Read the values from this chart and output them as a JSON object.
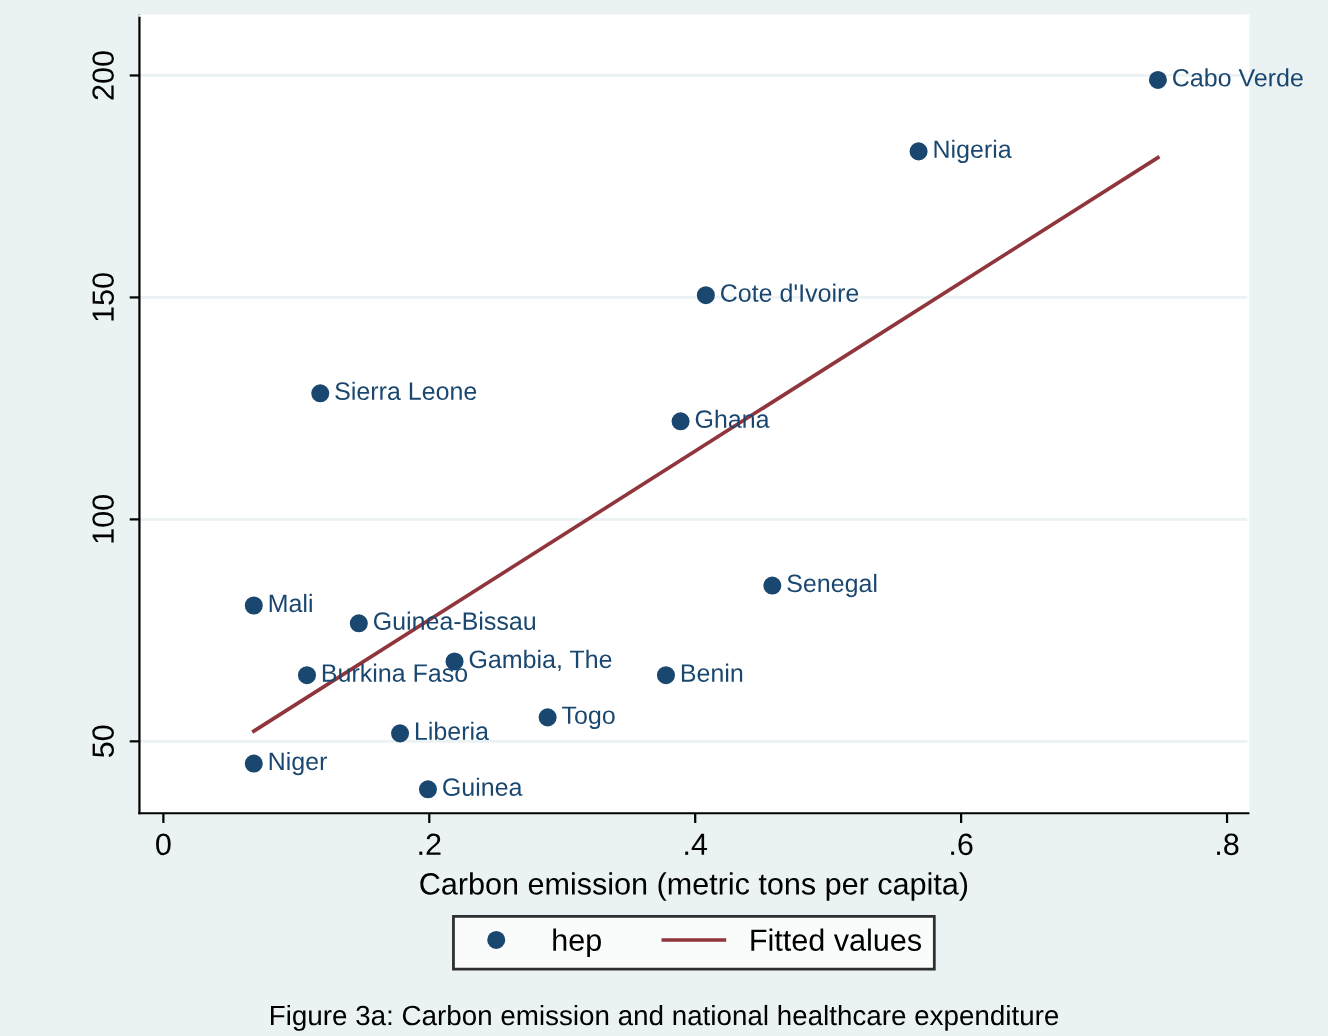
{
  "chart_data": {
    "type": "scatter",
    "xlabel": "Carbon emission (metric tons per capita)",
    "annotations": [
      {
        "text": "Cabo Verde",
        "x": 0.748,
        "y": 199
      },
      {
        "text": "Nigeria",
        "x": 0.568,
        "y": 182.9
      },
      {
        "text": "Cote d'Ivoire",
        "x": 0.408,
        "y": 150.5
      },
      {
        "text": "Sierra Leone",
        "x": 0.118,
        "y": 128.4
      },
      {
        "text": "Ghana",
        "x": 0.389,
        "y": 122.1
      },
      {
        "text": "Senegal",
        "x": 0.458,
        "y": 85.1
      },
      {
        "text": "Mali",
        "x": 0.068,
        "y": 80.6
      },
      {
        "text": "Guinea-Bissau",
        "x": 0.147,
        "y": 76.6
      },
      {
        "text": "Gambia, The",
        "x": 0.219,
        "y": 68
      },
      {
        "text": "Benin",
        "x": 0.378,
        "y": 64.9
      },
      {
        "text": "Burkina Faso",
        "x": 0.108,
        "y": 64.9
      },
      {
        "text": "Togo",
        "x": 0.289,
        "y": 55.4
      },
      {
        "text": "Liberia",
        "x": 0.178,
        "y": 51.8
      },
      {
        "text": "Niger",
        "x": 0.068,
        "y": 45
      },
      {
        "text": "Guinea",
        "x": 0.199,
        "y": 39.2
      },
      "Figure 3a: Carbon emission and national healthcare expenditure"
    ],
    "series": [
      {
        "name": "hep",
        "color": "#1a476f",
        "marker": "circle",
        "x": [
          0.748,
          0.568,
          0.408,
          0.118,
          0.389,
          0.458,
          0.068,
          0.147,
          0.219,
          0.378,
          0.108,
          0.289,
          0.178,
          0.068,
          0.199
        ],
        "values": [
          199,
          182.9,
          150.5,
          128.4,
          122.1,
          85.1,
          80.6,
          76.6,
          68,
          64.9,
          64.9,
          55.4,
          51.8,
          45,
          39.2
        ]
      },
      {
        "name": "Fitted values",
        "type": "line",
        "color": "#90353b",
        "line_style": "solid",
        "x": [
          0.068,
          0.748
        ],
        "values": [
          52.3,
          181.5
        ]
      }
    ],
    "xlim": [
      -0.018,
      0.816
    ],
    "ylim": [
      33.8,
      213.5
    ],
    "xticks": [
      0,
      {
        "value": 0.2,
        "label": ".2"
      },
      {
        "value": 0.4,
        "label": ".4"
      },
      {
        "value": 0.6,
        "label": ".6"
      },
      {
        "value": 0.8,
        "label": ".8"
      }
    ],
    "yticks": [
      50,
      100,
      150,
      200
    ],
    "grid": "y",
    "legend": "bottom"
  }
}
